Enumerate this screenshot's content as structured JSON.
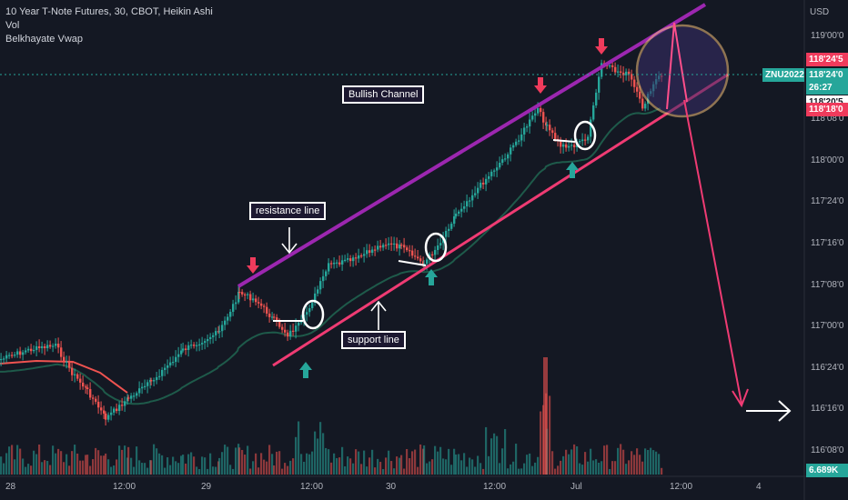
{
  "header": {
    "title": "10 Year T-Note Futures, 30, CBOT, Heikin Ashi",
    "indicators": [
      "Vol",
      "Belkhayate Vwap"
    ]
  },
  "price_axis": {
    "currency": "USD",
    "ticks": [
      "119'00'0",
      "118'16'0",
      "118'08'0",
      "118'00'0",
      "117'24'0",
      "117'16'0",
      "117'08'0",
      "117'00'0",
      "116'24'0",
      "116'16'0",
      "116'08'0"
    ],
    "badges": [
      {
        "text": "118'24'5",
        "color": "#ef3b5c"
      },
      {
        "text": "ZNU2022",
        "color": "#26a69a"
      },
      {
        "text": "118'24'0",
        "color": "#26a69a"
      },
      {
        "text": "26:27",
        "color": "#26a69a"
      },
      {
        "text": "118'20'5",
        "color": "#ffffff"
      },
      {
        "text": "118'18'0",
        "color": "#ef3b5c"
      },
      {
        "text": "6.689K",
        "color": "#26a69a"
      }
    ]
  },
  "time_axis": {
    "ticks": [
      "28",
      "12:00",
      "29",
      "12:00",
      "30",
      "12:00",
      "Jul",
      "12:00",
      "4"
    ]
  },
  "annotations": {
    "bullish_channel": "Bullish Channel",
    "resistance_line": "resistance line",
    "support_line": "support line"
  },
  "colors": {
    "background": "#141823",
    "bull": "#26a69a",
    "bear": "#ef5350",
    "resistance": "#9c27b0",
    "support": "#ef3b73",
    "circle": "#f5c07a",
    "projection": "#ef3b73",
    "vwap": "#1e5a4a"
  },
  "chart_data": {
    "type": "candlestick",
    "title": "10 Year T-Note Futures, 30, CBOT, Heikin Ashi",
    "y_unit": "points (32nds)",
    "ylim": [
      116.22,
      119.06
    ],
    "trend": "uptrend inside a rising channel from ~116.65 to ~118.85, with a projected drop to ~116.55",
    "close_path": [
      {
        "x": "Jun 28 00:00",
        "close": 116.85
      },
      {
        "x": "Jun 28 12:00",
        "close": 116.45
      },
      {
        "x": "Jun 29 00:00",
        "close": 116.95
      },
      {
        "x": "Jun 29 06:00",
        "close": 117.15
      },
      {
        "x": "Jun 29 12:00",
        "close": 116.98
      },
      {
        "x": "Jun 29 18:00",
        "close": 117.5
      },
      {
        "x": "Jun 30 00:00",
        "close": 117.58
      },
      {
        "x": "Jun 30 06:00",
        "close": 117.45
      },
      {
        "x": "Jun 30 12:00",
        "close": 118.0
      },
      {
        "x": "Jun 30 18:00",
        "close": 118.5
      },
      {
        "x": "Jul 1 00:00",
        "close": 118.24
      },
      {
        "x": "Jul 1 06:00",
        "close": 118.75
      },
      {
        "x": "Jul 1 12:00",
        "close": 118.75
      }
    ],
    "volume_max": 6689
  }
}
